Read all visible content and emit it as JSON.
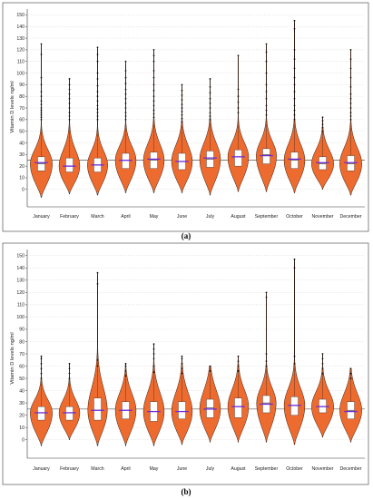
{
  "chart_data": [
    {
      "type": "violin",
      "panel_label": "(a)",
      "ylabel": "Vitamin D levels ng/ml",
      "ylim": [
        -15,
        155
      ],
      "yticks": [
        0,
        10,
        20,
        30,
        40,
        50,
        60,
        70,
        80,
        90,
        100,
        110,
        120,
        130,
        140,
        150
      ],
      "reference_line": 25,
      "grid": true,
      "categories": [
        "January",
        "February",
        "March",
        "April",
        "May",
        "June",
        "July",
        "August",
        "September",
        "October",
        "November",
        "December"
      ],
      "series": [
        {
          "category": "January",
          "q1": 16,
          "median": 22,
          "q3": 28,
          "mean": 23,
          "min": -7,
          "max": 125,
          "peak": 22,
          "width": 0.85,
          "outliers": [
            60,
            62,
            64,
            66,
            68,
            70,
            73,
            76,
            80,
            84,
            90,
            96,
            116,
            125
          ]
        },
        {
          "category": "February",
          "q1": 15,
          "median": 20,
          "q3": 27,
          "mean": 20,
          "min": -4,
          "max": 95,
          "peak": 20,
          "width": 0.8,
          "outliers": [
            60,
            63,
            66,
            70,
            74,
            78,
            82,
            86,
            90,
            95
          ]
        },
        {
          "category": "March",
          "q1": 15,
          "median": 21,
          "q3": 27,
          "mean": 21,
          "min": -5,
          "max": 122,
          "peak": 21,
          "width": 0.78,
          "outliers": [
            60,
            63,
            66,
            69,
            72,
            76,
            80,
            84,
            89,
            95,
            100,
            110,
            116,
            122
          ]
        },
        {
          "category": "April",
          "q1": 18,
          "median": 25,
          "q3": 31,
          "mean": 25,
          "min": -3,
          "max": 110,
          "peak": 25,
          "width": 0.8,
          "outliers": [
            60,
            63,
            66,
            70,
            74,
            78,
            82,
            86,
            91,
            96,
            102,
            110
          ]
        },
        {
          "category": "May",
          "q1": 18,
          "median": 25,
          "q3": 32,
          "mean": 26,
          "min": -3,
          "max": 120,
          "peak": 25,
          "width": 0.8,
          "outliers": [
            62,
            65,
            68,
            72,
            76,
            80,
            85,
            90,
            96,
            102,
            110,
            115,
            120
          ]
        },
        {
          "category": "June",
          "q1": 17,
          "median": 24,
          "q3": 31,
          "mean": 24,
          "min": -3,
          "max": 90,
          "peak": 24,
          "width": 0.8,
          "outliers": [
            58,
            61,
            64,
            67,
            70,
            73,
            77,
            81,
            85,
            90
          ]
        },
        {
          "category": "July",
          "q1": 19,
          "median": 26,
          "q3": 33,
          "mean": 27,
          "min": -5,
          "max": 95,
          "peak": 26,
          "width": 0.8,
          "outliers": [
            60,
            63,
            66,
            70,
            74,
            78,
            83,
            88,
            95
          ]
        },
        {
          "category": "August",
          "q1": 20,
          "median": 28,
          "q3": 34,
          "mean": 28,
          "min": -2,
          "max": 115,
          "peak": 28,
          "width": 0.8,
          "outliers": [
            66,
            70,
            75,
            80,
            86,
            115
          ]
        },
        {
          "category": "September",
          "q1": 22,
          "median": 30,
          "q3": 35,
          "mean": 29,
          "min": -2,
          "max": 125,
          "peak": 29,
          "width": 0.78,
          "outliers": [
            64,
            68,
            72,
            78,
            84,
            90,
            100,
            110,
            118,
            125
          ]
        },
        {
          "category": "October",
          "q1": 18,
          "median": 25,
          "q3": 32,
          "mean": 26,
          "min": -3,
          "max": 145,
          "peak": 25,
          "width": 0.8,
          "outliers": [
            60,
            64,
            68,
            72,
            78,
            84,
            90,
            96,
            104,
            112,
            120,
            138,
            145
          ]
        },
        {
          "category": "November",
          "q1": 17,
          "median": 22,
          "q3": 28,
          "mean": 23,
          "min": 0,
          "max": 62,
          "peak": 22,
          "width": 0.85,
          "outliers": [
            50,
            53,
            56,
            59,
            62
          ]
        },
        {
          "category": "December",
          "q1": 16,
          "median": 22,
          "q3": 29,
          "mean": 23,
          "min": -5,
          "max": 120,
          "peak": 22,
          "width": 0.85,
          "outliers": [
            60,
            63,
            66,
            70,
            74,
            78,
            82,
            88,
            96,
            104,
            112,
            120
          ]
        }
      ]
    },
    {
      "type": "violin",
      "panel_label": "(b)",
      "ylabel": "Vitamin D levels ng/ml",
      "ylim": [
        -15,
        155
      ],
      "yticks": [
        0,
        10,
        20,
        30,
        40,
        50,
        60,
        70,
        80,
        90,
        100,
        110,
        120,
        130,
        140,
        150
      ],
      "reference_line": 25,
      "grid": true,
      "categories": [
        "January",
        "February",
        "March",
        "April",
        "May",
        "June",
        "July",
        "August",
        "September",
        "October",
        "November",
        "December"
      ],
      "series": [
        {
          "category": "January",
          "q1": 16,
          "median": 22,
          "q3": 27,
          "mean": 22,
          "min": -5,
          "max": 68,
          "peak": 22,
          "width": 0.85,
          "outliers": [
            50,
            54,
            58,
            62,
            66,
            68
          ]
        },
        {
          "category": "February",
          "q1": 16,
          "median": 22,
          "q3": 27,
          "mean": 22,
          "min": 0,
          "max": 62,
          "peak": 22,
          "width": 0.8,
          "outliers": [
            50,
            54,
            58,
            62
          ]
        },
        {
          "category": "March",
          "q1": 16,
          "median": 24,
          "q3": 34,
          "mean": 24,
          "min": -5,
          "max": 136,
          "peak": 24,
          "width": 0.75,
          "outliers": [
            60,
            65,
            127,
            136
          ]
        },
        {
          "category": "April",
          "q1": 17,
          "median": 24,
          "q3": 31,
          "mean": 24,
          "min": -5,
          "max": 62,
          "peak": 24,
          "width": 0.8,
          "outliers": [
            52,
            56,
            60,
            62
          ]
        },
        {
          "category": "May",
          "q1": 15,
          "median": 23,
          "q3": 31,
          "mean": 23,
          "min": -5,
          "max": 78,
          "peak": 23,
          "width": 0.8,
          "outliers": [
            55,
            60,
            66,
            70,
            74,
            78
          ]
        },
        {
          "category": "June",
          "q1": 17,
          "median": 23,
          "q3": 31,
          "mean": 23,
          "min": -4,
          "max": 68,
          "peak": 23,
          "width": 0.8,
          "outliers": [
            54,
            58,
            62,
            66,
            68
          ]
        },
        {
          "category": "July",
          "q1": 18,
          "median": 26,
          "q3": 33,
          "mean": 25,
          "min": -2,
          "max": 60,
          "peak": 25,
          "width": 0.8,
          "outliers": [
            56,
            60
          ]
        },
        {
          "category": "August",
          "q1": 18,
          "median": 27,
          "q3": 34,
          "mean": 27,
          "min": -2,
          "max": 68,
          "peak": 27,
          "width": 0.8,
          "outliers": [
            56,
            60,
            64,
            68
          ]
        },
        {
          "category": "September",
          "q1": 22,
          "median": 30,
          "q3": 36,
          "mean": 29,
          "min": -2,
          "max": 120,
          "peak": 30,
          "width": 0.75,
          "outliers": [
            60,
            64,
            70,
            116,
            120
          ]
        },
        {
          "category": "October",
          "q1": 20,
          "median": 28,
          "q3": 35,
          "mean": 28,
          "min": -4,
          "max": 147,
          "peak": 28,
          "width": 0.8,
          "outliers": [
            62,
            68,
            140,
            147
          ]
        },
        {
          "category": "November",
          "q1": 22,
          "median": 27,
          "q3": 33,
          "mean": 27,
          "min": 2,
          "max": 70,
          "peak": 27,
          "width": 0.85,
          "outliers": [
            54,
            58,
            62,
            66,
            70
          ]
        },
        {
          "category": "December",
          "q1": 17,
          "median": 24,
          "q3": 31,
          "mean": 23,
          "min": -2,
          "max": 58,
          "peak": 24,
          "width": 0.85,
          "outliers": [
            50,
            54,
            58
          ]
        }
      ]
    }
  ],
  "style": {
    "violin_fill": "#ee6b2f",
    "violin_stroke": "#3a1a0a",
    "box_fill": "#ffffff",
    "mean_line": "#6a2bd8",
    "reference_line": "#333333",
    "grid": "#cfcfcf",
    "outlier": "#111111"
  }
}
